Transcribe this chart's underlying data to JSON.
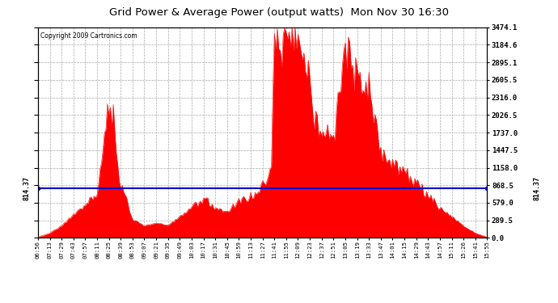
{
  "title": "Grid Power & Average Power (output watts)  Mon Nov 30 16:30",
  "copyright": "Copyright 2009 Cartronics.com",
  "average_line_value": 814.37,
  "yticks": [
    0.0,
    289.5,
    579.0,
    868.5,
    1158.0,
    1447.5,
    1737.0,
    2026.5,
    2316.0,
    2605.5,
    2895.1,
    3184.6,
    3474.1
  ],
  "ymax": 3474.1,
  "background_color": "#ffffff",
  "plot_bg_color": "#ffffff",
  "grid_color": "#aaaaaa",
  "bar_color": "#ff0000",
  "line_color": "#0000cc",
  "title_color": "#000000",
  "xtick_labels": [
    "06:56",
    "07:13",
    "07:29",
    "07:43",
    "07:57",
    "08:11",
    "08:25",
    "08:39",
    "08:53",
    "09:07",
    "09:21",
    "09:35",
    "09:49",
    "10:03",
    "10:17",
    "10:31",
    "10:45",
    "10:59",
    "11:13",
    "11:27",
    "11:41",
    "11:55",
    "12:09",
    "12:23",
    "12:37",
    "12:51",
    "13:05",
    "13:19",
    "13:33",
    "13:47",
    "14:01",
    "14:15",
    "14:29",
    "14:43",
    "14:57",
    "15:11",
    "15:26",
    "15:41",
    "15:55"
  ]
}
